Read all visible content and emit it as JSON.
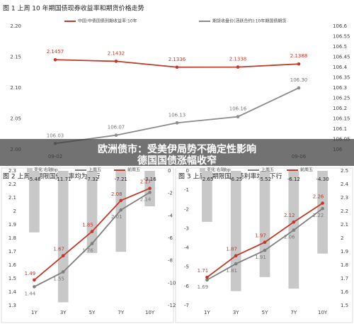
{
  "chart_data": [
    {
      "type": "line",
      "title": "图 1  上周 10 年期国债现券收益率和期货价格走势",
      "categories": [
        "09-02",
        null,
        null,
        null,
        "09-06"
      ],
      "series": [
        {
          "name": "中国:中债国债到期收益率:10年",
          "color": "#c0392b",
          "values": [
            2.1457,
            2.1432,
            2.1336,
            2.1338,
            2.1388
          ]
        },
        {
          "name": "期货收盘价(活跃合约):10年期国债期货",
          "color": "#8c8c8c",
          "axis": "y2",
          "values": [
            106.03,
            106.07,
            106.13,
            106.16,
            106.3
          ],
          "value_labels": [
            "106.03",
            "106.07",
            "106.13",
            "106.16",
            "106.30"
          ]
        }
      ],
      "ylim": [
        2.0,
        2.2
      ],
      "yticks": [
        {
          "value": 2.0,
          "label": "2.00"
        },
        2.05,
        {
          "value": 2.1,
          "label": "2.10"
        },
        2.15,
        {
          "value": 2.2,
          "label": "2.20"
        }
      ],
      "y2lim": [
        106,
        106.6
      ],
      "y2ticks": [
        106,
        106.05,
        106.1,
        106.15,
        106.2,
        106.25,
        106.3,
        106.35,
        106.4,
        106.45,
        106.5,
        106.55,
        106.6
      ],
      "y_side": "left",
      "grid": false
    },
    {
      "type": "combo",
      "title": "图 2  上周各期限国债利率均为下行",
      "categories": [
        "1Y",
        "3Y",
        "5Y",
        "7Y",
        "10Y"
      ],
      "series": [
        {
          "name": "变化:右轴bp",
          "type": "bar",
          "color": "#c8c8c8",
          "axis": "y2",
          "values": [
            -5.48,
            -11.71,
            -7.32,
            -7.21,
            -3.16
          ]
        },
        {
          "name": "上周五",
          "type": "line",
          "color": "#7f7f7f",
          "values": [
            1.44,
            1.55,
            1.76,
            2.01,
            2.14
          ]
        },
        {
          "name": "前周五",
          "type": "line",
          "color": "#c0392b",
          "values": [
            1.49,
            1.67,
            1.85,
            2.08,
            2.17
          ]
        }
      ],
      "ylim": [
        1.3,
        2.3
      ],
      "yticks": [
        1.3,
        1.4,
        1.5,
        1.6,
        1.7,
        1.8,
        1.9,
        2,
        2.1,
        2.2,
        2.3
      ],
      "y2lim": [
        -12,
        0
      ],
      "y2ticks": [
        -12,
        -10,
        -8,
        -6,
        -4,
        -2,
        0
      ],
      "y_side": "left",
      "grid": false
    },
    {
      "type": "combo",
      "title": "图 3  上周各期限国开债利率均为下行",
      "categories": [
        "1Y",
        "3Y",
        "5Y",
        "7Y",
        "10Y"
      ],
      "series": [
        {
          "name": "变化:右轴bp",
          "type": "bar",
          "color": "#c8c8c8",
          "axis": "y2",
          "values": [
            -2.65,
            -6.25,
            -5.52,
            -6.12,
            -4.3
          ],
          "value_labels": [
            "-2.65",
            "-6.25",
            "-5.52",
            "-6.12",
            "-4.30"
          ]
        },
        {
          "name": "上周五",
          "type": "line",
          "color": "#7f7f7f",
          "values": [
            1.69,
            1.81,
            1.91,
            2.06,
            2.22
          ]
        },
        {
          "name": "前周五",
          "type": "line",
          "color": "#c0392b",
          "values": [
            1.71,
            1.87,
            1.97,
            2.12,
            2.26
          ]
        }
      ],
      "ylim": [
        1.5,
        2.5
      ],
      "yticks": [
        1.5,
        1.6,
        1.7,
        1.8,
        1.9,
        2,
        2.1,
        2.2,
        2.3,
        2.4,
        2.5
      ],
      "y2lim": [
        -7,
        0
      ],
      "y2ticks": [
        -7,
        -6,
        -5,
        -4,
        -3,
        -2,
        -1,
        0
      ],
      "y_side": "right",
      "grid": false
    }
  ],
  "headline": [
    "欧洲债市：受美伊局势不确定性影响",
    "德国国债涨幅收窄"
  ]
}
